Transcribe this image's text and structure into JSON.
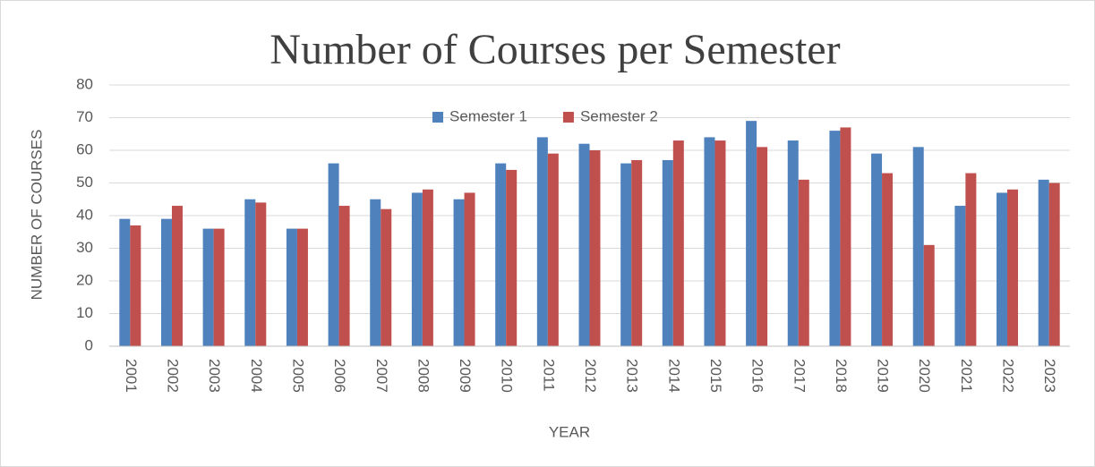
{
  "chart_data": {
    "type": "bar",
    "title": "Number of Courses per Semester",
    "xlabel": "YEAR",
    "ylabel": "NUMBER OF COURSES",
    "categories": [
      "2001",
      "2002",
      "2003",
      "2004",
      "2005",
      "2006",
      "2007",
      "2008",
      "2009",
      "2010",
      "2011",
      "2012",
      "2013",
      "2014",
      "2015",
      "2016",
      "2017",
      "2018",
      "2019",
      "2020",
      "2021",
      "2022",
      "2023"
    ],
    "series": [
      {
        "name": "Semester 1",
        "color": "#4f81bd",
        "values": [
          39,
          39,
          36,
          45,
          36,
          56,
          45,
          47,
          45,
          56,
          64,
          62,
          56,
          57,
          64,
          69,
          63,
          66,
          59,
          61,
          43,
          47,
          51
        ]
      },
      {
        "name": "Semester 2",
        "color": "#c0504d",
        "values": [
          37,
          43,
          36,
          44,
          36,
          43,
          42,
          48,
          47,
          54,
          59,
          60,
          57,
          63,
          63,
          61,
          51,
          67,
          53,
          31,
          53,
          48,
          50
        ]
      }
    ],
    "ylim": [
      0,
      80
    ],
    "yticks": [
      0,
      10,
      20,
      30,
      40,
      50,
      60,
      70,
      80
    ],
    "grid": true,
    "legend": "top"
  }
}
